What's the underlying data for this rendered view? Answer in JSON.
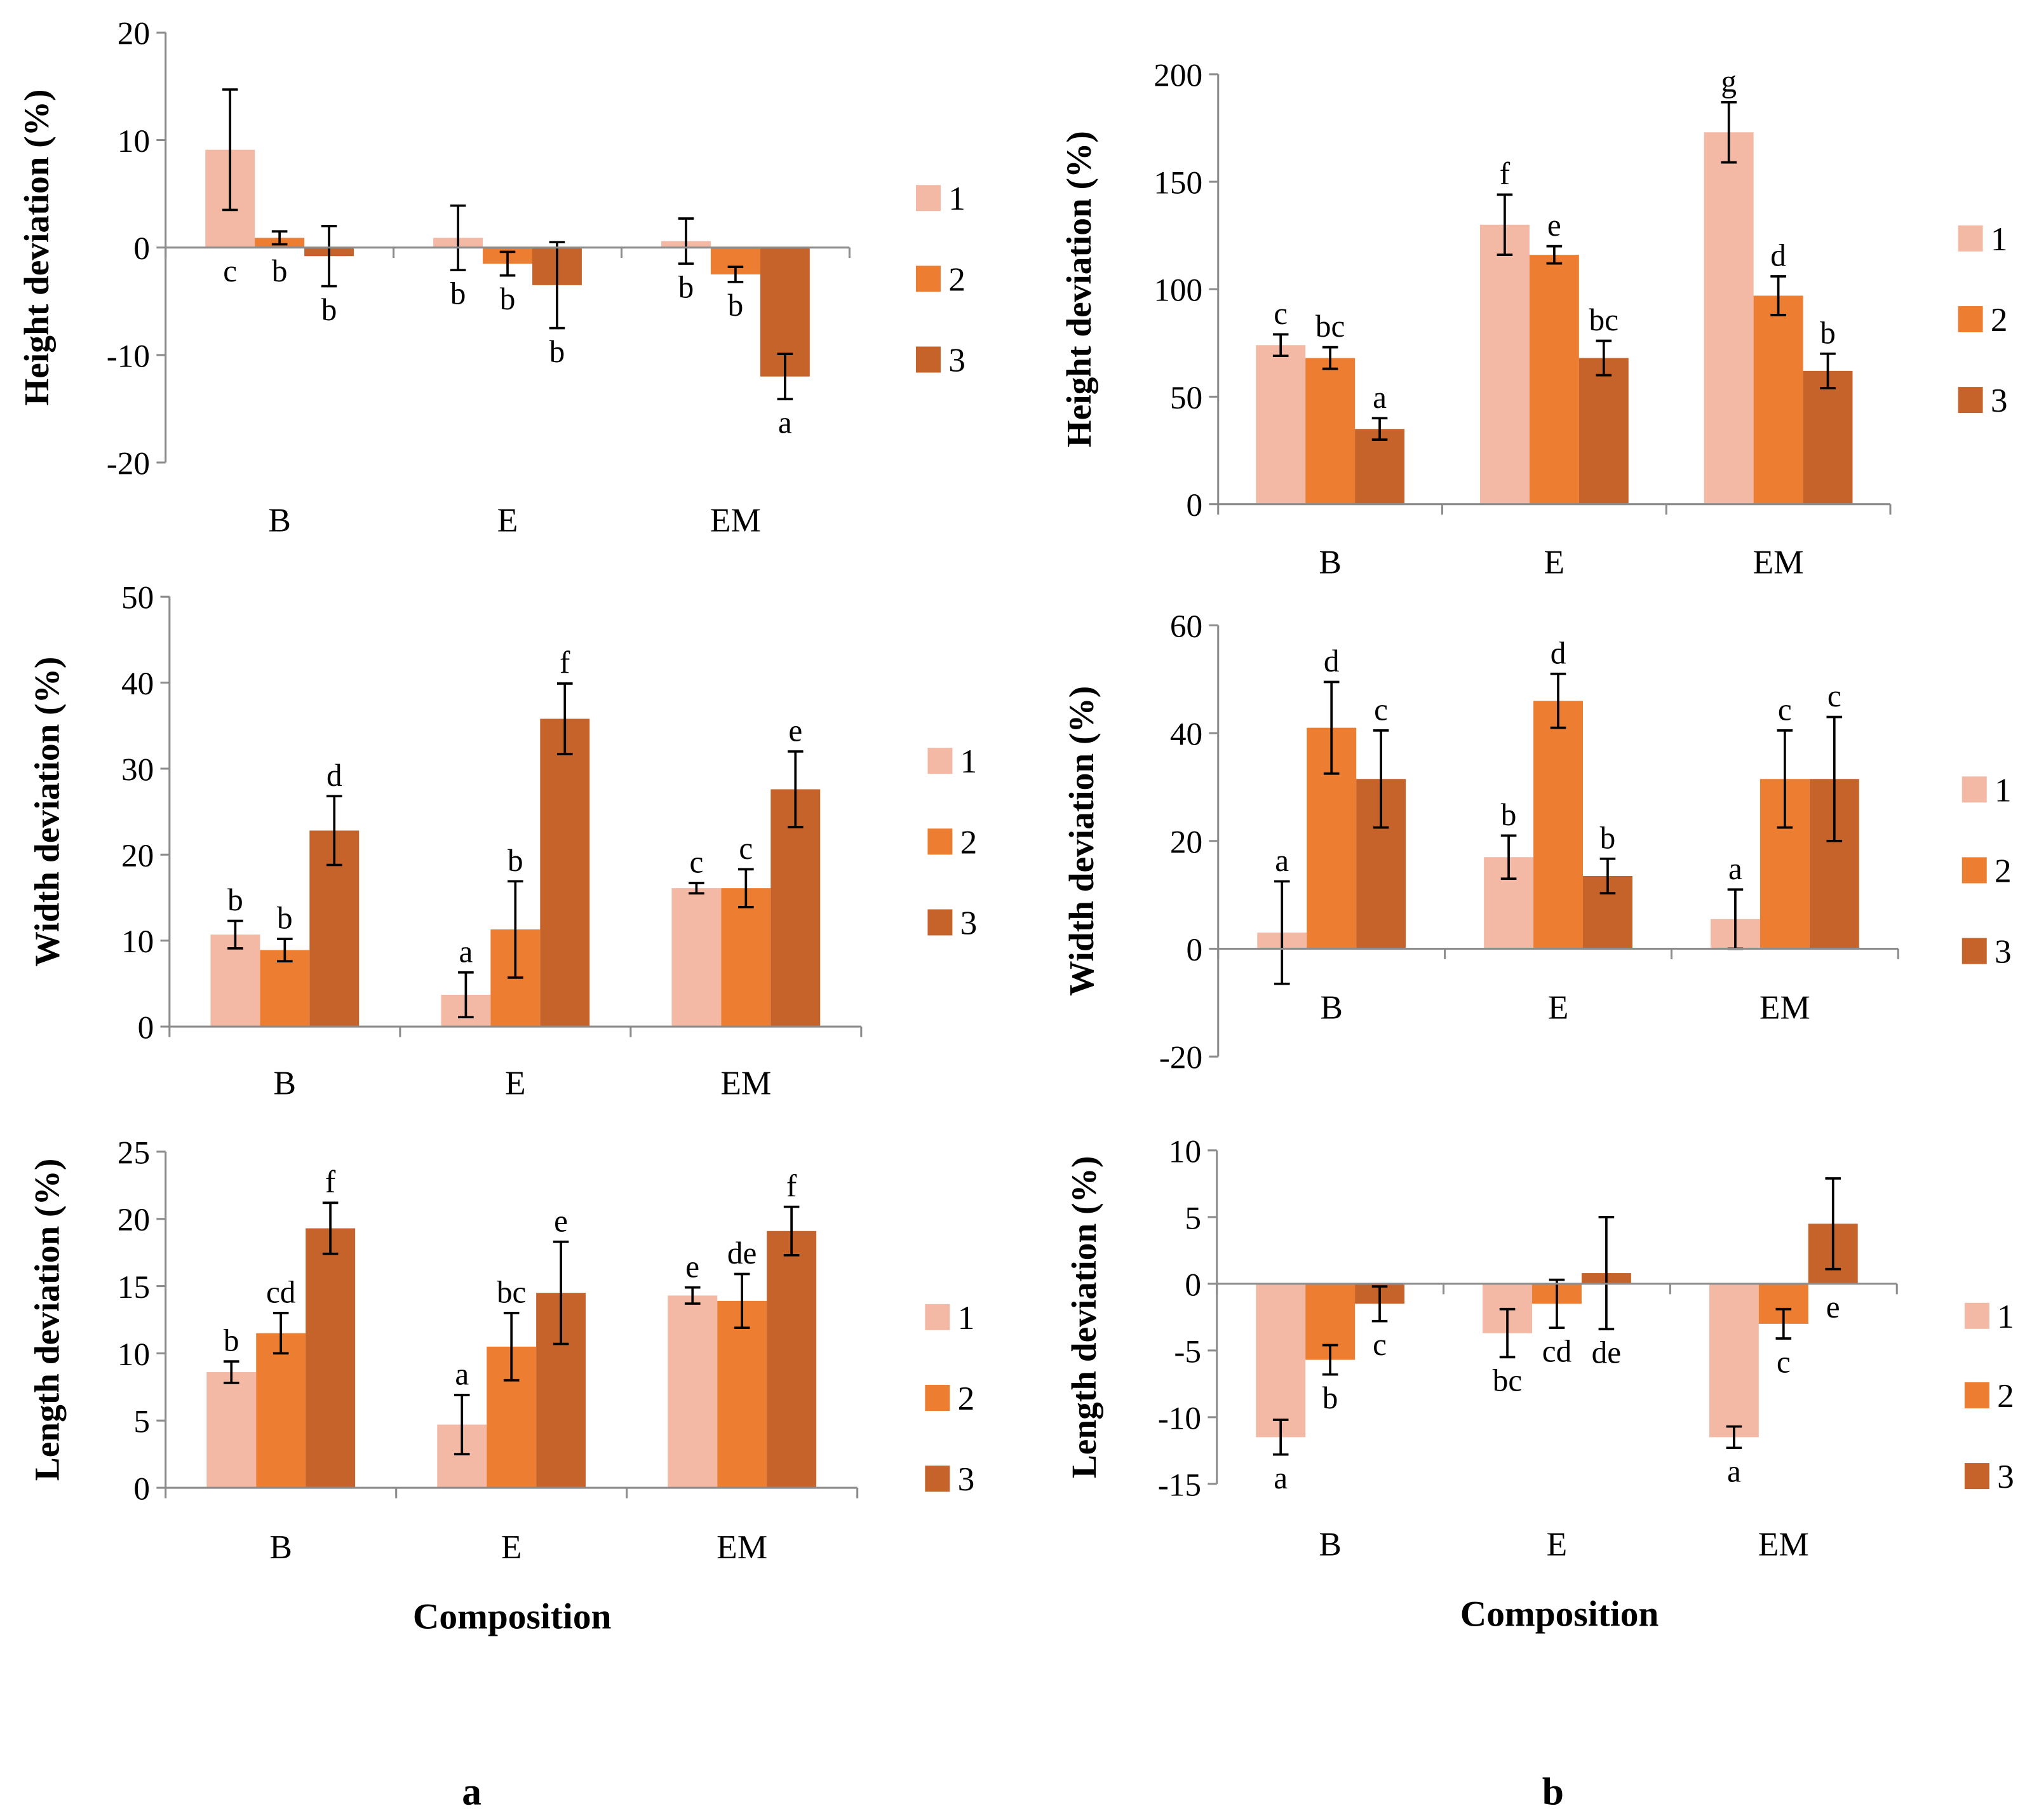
{
  "colors": {
    "1": "#F4B9A5",
    "2": "#ED7D31",
    "3": "#C5632A",
    "axis": "#8C8C8C"
  },
  "panel_labels": [
    "a",
    "b"
  ],
  "xlabel": "Composition",
  "chart_data": [
    {
      "type": "bar",
      "panel": "a",
      "ylabel": "Height deviation (%)",
      "ylim": [
        -20,
        20
      ],
      "yticks": [
        -20,
        -10,
        0,
        10,
        20
      ],
      "categories": [
        "B",
        "E",
        "EM"
      ],
      "legend": [
        "1",
        "2",
        "3"
      ],
      "series": [
        {
          "name": "1",
          "values": [
            9.1,
            0.9,
            0.6
          ],
          "errors": [
            5.6,
            3.0,
            2.1
          ],
          "letters": [
            "c",
            "b",
            "b"
          ]
        },
        {
          "name": "2",
          "values": [
            0.9,
            -1.5,
            -2.5
          ],
          "errors": [
            0.6,
            1.1,
            0.7
          ],
          "letters": [
            "b",
            "b",
            "b"
          ]
        },
        {
          "name": "3",
          "values": [
            -0.8,
            -3.5,
            -12.0
          ],
          "errors": [
            2.8,
            4.0,
            2.1
          ],
          "letters": [
            "b",
            "b",
            "a"
          ]
        }
      ]
    },
    {
      "type": "bar",
      "panel": "b",
      "ylabel": "Height deviation (%)",
      "ylim": [
        0,
        200
      ],
      "yticks": [
        0,
        50,
        100,
        150,
        200
      ],
      "categories": [
        "B",
        "E",
        "EM"
      ],
      "legend": [
        "1",
        "2",
        "3"
      ],
      "series": [
        {
          "name": "1",
          "values": [
            74,
            130,
            173
          ],
          "errors": [
            5,
            14,
            14
          ],
          "letters": [
            "c",
            "f",
            "g"
          ]
        },
        {
          "name": "2",
          "values": [
            68,
            116,
            97
          ],
          "errors": [
            5,
            4,
            9
          ],
          "letters": [
            "bc",
            "e",
            "d"
          ]
        },
        {
          "name": "3",
          "values": [
            35,
            68,
            62
          ],
          "errors": [
            5,
            8,
            8
          ],
          "letters": [
            "a",
            "bc",
            "b"
          ]
        }
      ]
    },
    {
      "type": "bar",
      "panel": "a",
      "ylabel": "Width deviation (%)",
      "ylim": [
        0,
        50
      ],
      "yticks": [
        0,
        10,
        20,
        30,
        40,
        50
      ],
      "categories": [
        "B",
        "E",
        "EM"
      ],
      "legend": [
        "1",
        "2",
        "3"
      ],
      "series": [
        {
          "name": "1",
          "values": [
            10.7,
            3.7,
            16.1
          ],
          "errors": [
            1.6,
            2.6,
            0.6
          ],
          "letters": [
            "b",
            "a",
            "c"
          ]
        },
        {
          "name": "2",
          "values": [
            8.9,
            11.3,
            16.1
          ],
          "errors": [
            1.3,
            5.6,
            2.2
          ],
          "letters": [
            "b",
            "b",
            "c"
          ]
        },
        {
          "name": "3",
          "values": [
            22.8,
            35.8,
            27.6
          ],
          "errors": [
            4.0,
            4.1,
            4.4
          ],
          "letters": [
            "d",
            "f",
            "e"
          ]
        }
      ]
    },
    {
      "type": "bar",
      "panel": "b",
      "ylabel": "Width deviation (%)",
      "ylim": [
        -20,
        60
      ],
      "yticks": [
        -20,
        0,
        20,
        40,
        60
      ],
      "categories": [
        "B",
        "E",
        "EM"
      ],
      "legend": [
        "1",
        "2",
        "3"
      ],
      "series": [
        {
          "name": "1",
          "values": [
            3,
            17,
            5.5
          ],
          "errors": [
            9.5,
            4,
            5.5
          ],
          "letters": [
            "a",
            "b",
            "a"
          ]
        },
        {
          "name": "2",
          "values": [
            41,
            46,
            31.5
          ],
          "errors": [
            8.5,
            5,
            9
          ],
          "letters": [
            "d",
            "d",
            "c"
          ]
        },
        {
          "name": "3",
          "values": [
            31.5,
            13.5,
            31.5
          ],
          "errors": [
            9,
            3.2,
            11.5
          ],
          "letters": [
            "c",
            "b",
            "c"
          ]
        }
      ]
    },
    {
      "type": "bar",
      "panel": "a",
      "ylabel": "Length deviation (%)",
      "ylim": [
        0,
        25
      ],
      "yticks": [
        0,
        5,
        10,
        15,
        20,
        25
      ],
      "categories": [
        "B",
        "E",
        "EM"
      ],
      "legend": [
        "1",
        "2",
        "3"
      ],
      "series": [
        {
          "name": "1",
          "values": [
            8.6,
            4.7,
            14.3
          ],
          "errors": [
            0.8,
            2.2,
            0.6
          ],
          "letters": [
            "b",
            "a",
            "e"
          ]
        },
        {
          "name": "2",
          "values": [
            11.5,
            10.5,
            13.9
          ],
          "errors": [
            1.5,
            2.5,
            2.0
          ],
          "letters": [
            "cd",
            "bc",
            "de"
          ]
        },
        {
          "name": "3",
          "values": [
            19.3,
            14.5,
            19.1
          ],
          "errors": [
            1.9,
            3.8,
            1.8
          ],
          "letters": [
            "f",
            "e",
            "f"
          ]
        }
      ]
    },
    {
      "type": "bar",
      "panel": "b",
      "ylabel": "Length deviation (%)",
      "ylim": [
        -15,
        10
      ],
      "yticks": [
        -15,
        -10,
        -5,
        0,
        5,
        10
      ],
      "categories": [
        "B",
        "E",
        "EM"
      ],
      "legend": [
        "1",
        "2",
        "3"
      ],
      "series": [
        {
          "name": "1",
          "values": [
            -11.5,
            -3.7,
            -11.5
          ],
          "errors": [
            1.3,
            1.8,
            0.8
          ],
          "letters": [
            "a",
            "bc",
            "a"
          ]
        },
        {
          "name": "2",
          "values": [
            -5.7,
            -1.5,
            -3.0
          ],
          "errors": [
            1.1,
            1.8,
            1.1
          ],
          "letters": [
            "b",
            "cd",
            "c"
          ]
        },
        {
          "name": "3",
          "values": [
            -1.5,
            0.8,
            4.5
          ],
          "errors": [
            1.3,
            4.2,
            3.4
          ],
          "letters": [
            "c",
            "de",
            "e"
          ]
        }
      ]
    }
  ]
}
